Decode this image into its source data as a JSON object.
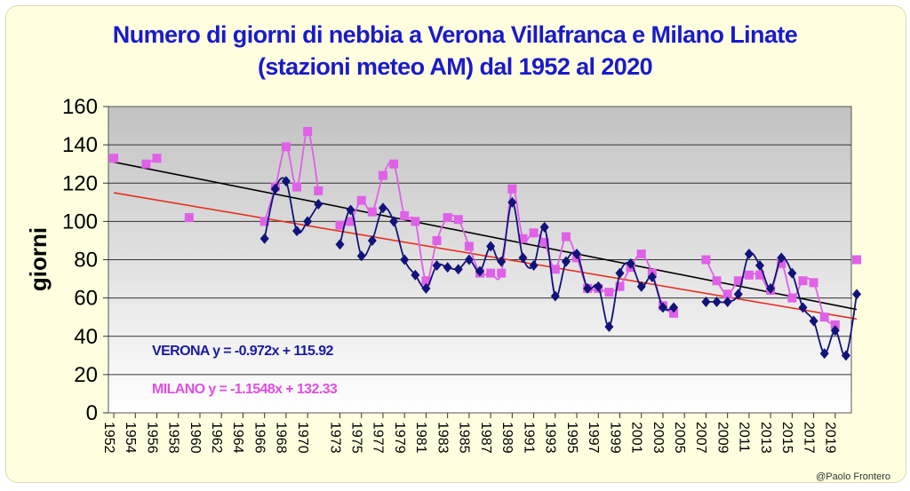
{
  "title_line1": "Numero di giorni di nebbia a Verona Villafranca e Milano Linate",
  "title_line2": "(stazioni meteo AM) dal 1952  al 2020",
  "credit": "@Paolo Frontero",
  "colors": {
    "verona": "#12127a",
    "milano": "#e060e8",
    "trend_verona": "#000000",
    "trend_milano": "#e83020",
    "verona_eq_text": "#1a1aa0",
    "milano_eq_text": "#e04ee0"
  },
  "chart_data": {
    "type": "line",
    "title": "Numero di giorni di nebbia a Verona Villafranca e Milano Linate (stazioni meteo AM) dal 1952  al 2020",
    "xlabel": "",
    "ylabel": "giorni",
    "ylim": [
      0,
      160
    ],
    "yticks": [
      0,
      20,
      40,
      60,
      80,
      100,
      120,
      140,
      160
    ],
    "xlim": [
      1951.5,
      2020.5
    ],
    "xticks": [
      1952,
      1954,
      1956,
      1958,
      1960,
      1962,
      1964,
      1966,
      1968,
      1970,
      1973,
      1975,
      1977,
      1979,
      1981,
      1983,
      1985,
      1987,
      1989,
      1991,
      1993,
      1995,
      1997,
      1999,
      2001,
      2003,
      2005,
      2007,
      2009,
      2011,
      2013,
      2015,
      2017,
      2019
    ],
    "grid": true,
    "series": [
      {
        "name": "VERONA",
        "marker": "diamond",
        "data": [
          [
            1966,
            91
          ],
          [
            1967,
            117
          ],
          [
            1968,
            121
          ],
          [
            1969,
            95
          ],
          [
            1970,
            100
          ],
          [
            1971,
            109
          ],
          [
            1973,
            88
          ],
          [
            1974,
            106
          ],
          [
            1975,
            82
          ],
          [
            1976,
            90
          ],
          [
            1977,
            107
          ],
          [
            1978,
            100
          ],
          [
            1979,
            80
          ],
          [
            1980,
            72
          ],
          [
            1981,
            65
          ],
          [
            1982,
            77
          ],
          [
            1983,
            76
          ],
          [
            1984,
            75
          ],
          [
            1985,
            80
          ],
          [
            1986,
            74
          ],
          [
            1987,
            87
          ],
          [
            1988,
            79
          ],
          [
            1989,
            110
          ],
          [
            1990,
            81
          ],
          [
            1991,
            77
          ],
          [
            1992,
            97
          ],
          [
            1993,
            61
          ],
          [
            1994,
            79
          ],
          [
            1995,
            83
          ],
          [
            1996,
            65
          ],
          [
            1997,
            66
          ],
          [
            1998,
            45
          ],
          [
            1999,
            73
          ],
          [
            2000,
            78
          ],
          [
            2001,
            66
          ],
          [
            2002,
            71
          ],
          [
            2003,
            55
          ],
          [
            2004,
            55
          ],
          [
            2007,
            58
          ],
          [
            2008,
            58
          ],
          [
            2009,
            58
          ],
          [
            2010,
            62
          ],
          [
            2011,
            83
          ],
          [
            2012,
            77
          ],
          [
            2013,
            65
          ],
          [
            2014,
            81
          ],
          [
            2015,
            73
          ],
          [
            2016,
            55
          ],
          [
            2017,
            48
          ],
          [
            2018,
            31
          ],
          [
            2019,
            43
          ],
          [
            2020,
            30
          ],
          [
            2021,
            62
          ]
        ]
      },
      {
        "name": "MILANO",
        "marker": "square",
        "data": [
          [
            1952,
            133
          ],
          [
            1955,
            130
          ],
          [
            1956,
            133
          ],
          [
            1959,
            102
          ],
          [
            1966,
            100
          ],
          [
            1967,
            118
          ],
          [
            1968,
            139
          ],
          [
            1969,
            118
          ],
          [
            1970,
            147
          ],
          [
            1971,
            116
          ],
          [
            1973,
            98
          ],
          [
            1974,
            100
          ],
          [
            1975,
            111
          ],
          [
            1976,
            105
          ],
          [
            1977,
            124
          ],
          [
            1978,
            130
          ],
          [
            1979,
            103
          ],
          [
            1980,
            100
          ],
          [
            1981,
            69
          ],
          [
            1982,
            90
          ],
          [
            1983,
            102
          ],
          [
            1984,
            101
          ],
          [
            1985,
            87
          ],
          [
            1986,
            73
          ],
          [
            1987,
            73
          ],
          [
            1988,
            73
          ],
          [
            1989,
            117
          ],
          [
            1990,
            91
          ],
          [
            1991,
            94
          ],
          [
            1992,
            89
          ],
          [
            1993,
            75
          ],
          [
            1994,
            92
          ],
          [
            1995,
            81
          ],
          [
            1996,
            65
          ],
          [
            1997,
            65
          ],
          [
            1998,
            63
          ],
          [
            1999,
            66
          ],
          [
            2000,
            76
          ],
          [
            2001,
            83
          ],
          [
            2002,
            73
          ],
          [
            2003,
            56
          ],
          [
            2004,
            52
          ],
          [
            2007,
            80
          ],
          [
            2008,
            69
          ],
          [
            2009,
            62
          ],
          [
            2010,
            69
          ],
          [
            2011,
            72
          ],
          [
            2012,
            72
          ],
          [
            2013,
            64
          ],
          [
            2014,
            78
          ],
          [
            2015,
            60
          ],
          [
            2016,
            69
          ],
          [
            2017,
            68
          ],
          [
            2018,
            50
          ],
          [
            2019,
            46
          ],
          [
            2021,
            80
          ]
        ]
      }
    ],
    "trendlines": [
      {
        "series": "VERONA",
        "equation": "VERONA y = -0.972x + 115.92",
        "from": [
          1952,
          131
        ],
        "to": [
          2021,
          54
        ]
      },
      {
        "series": "MILANO",
        "equation": "MILANO y = -1.1548x + 132.33",
        "from": [
          1952,
          115
        ],
        "to": [
          2021,
          49
        ]
      }
    ]
  }
}
